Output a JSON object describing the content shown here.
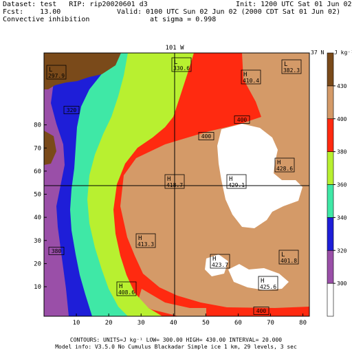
{
  "header": {
    "line1_left": "Dataset: test   RIP: rip20020601 d3",
    "line1_right": "Init: 1200 UTC Sat 01 Jun 02",
    "line2_left": "Fcst:    13.00",
    "line2_right": "Valid: 0100 UTC Sun 02 Jun 02 (2000 CDT Sat 01 Jun 02)",
    "line3_left": "Convective inhibition",
    "line3_right": "at sigma = 0.998"
  },
  "map": {
    "top_label_center": "101 W",
    "top_label_right": "37 N",
    "x_ticks": [
      "10",
      "20",
      "30",
      "40",
      "50",
      "60",
      "70",
      "80"
    ],
    "y_ticks": [
      "10",
      "20",
      "30",
      "40",
      "50",
      "60",
      "70",
      "80"
    ],
    "colors": {
      "c300": "#ffffff",
      "c320": "#9a4fa8",
      "c340": "#1e1ed8",
      "c360": "#3fe8a6",
      "c380": "#b8f030",
      "c400": "#ff2a10",
      "c430": "#d49a68",
      "c_top": "#7a4a1a"
    },
    "labels": [
      {
        "t": "L",
        "v": "297.9"
      },
      {
        "t": "L",
        "v": "330.6"
      },
      {
        "t": "H",
        "v": "410.4"
      },
      {
        "t": "L",
        "v": "382.3"
      },
      {
        "t": "",
        "v": "320"
      },
      {
        "t": "",
        "v": "400"
      },
      {
        "t": "",
        "v": "400"
      },
      {
        "t": "H",
        "v": "428.6"
      },
      {
        "t": "H",
        "v": "418.7"
      },
      {
        "t": "H",
        "v": "429.1"
      },
      {
        "t": "H",
        "v": "413.3"
      },
      {
        "t": "",
        "v": "380"
      },
      {
        "t": "H",
        "v": "423.7"
      },
      {
        "t": "L",
        "v": "401.8"
      },
      {
        "t": "H",
        "v": "425.6"
      },
      {
        "t": "H",
        "v": "408.6"
      },
      {
        "t": "",
        "v": "400"
      }
    ]
  },
  "colorbar": {
    "unit": "J kg⁻¹",
    "ticks": [
      "300",
      "320",
      "340",
      "360",
      "380",
      "400",
      "430"
    ]
  },
  "footer": {
    "line1": "CONTOURS:  UNITS=J kg⁻¹   LOW=   300.00       HIGH=   430.00        INTERVAL=    20.000",
    "line2": "Model info: V3.5.0 No Cumulus Blackadar  Simple ice    1 km,  29 levels,    3 sec"
  }
}
